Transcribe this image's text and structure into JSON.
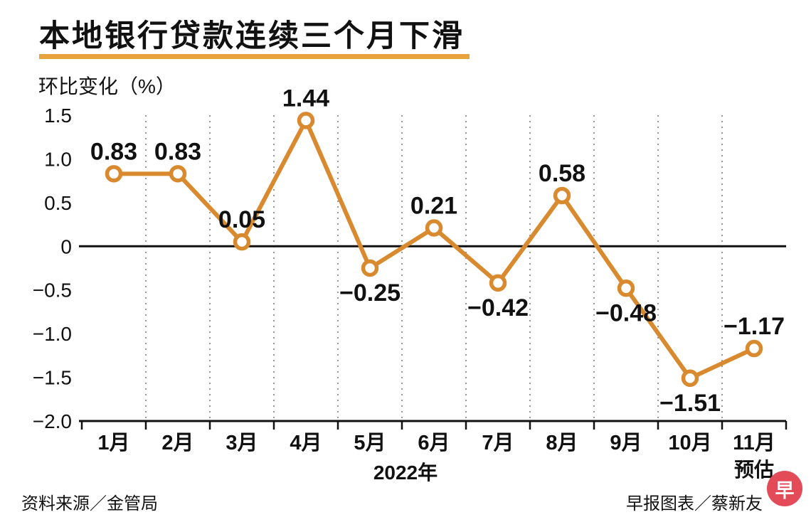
{
  "title": "本地银行贷款连续三个月下滑",
  "footer": {
    "source": "资料来源／金管局",
    "credit": "早报图表／蔡新友",
    "logo_char": "早"
  },
  "colors": {
    "line": "#D98A2E",
    "underline": "#E8A33C",
    "logo_red": "#E24B57",
    "text": "#111111",
    "gridline": "#9A9A9A"
  },
  "chart_data": {
    "type": "line",
    "title": "本地银行贷款连续三个月下滑",
    "ylabel": "环比变化（%）",
    "xlabel": "2022年",
    "categories": [
      "1月",
      "2月",
      "3月",
      "4月",
      "5月",
      "6月",
      "7月",
      "8月",
      "9月",
      "10月",
      "11月"
    ],
    "values": [
      0.83,
      0.83,
      0.05,
      1.44,
      -0.25,
      0.21,
      -0.42,
      0.58,
      -0.48,
      -1.51,
      -1.17
    ],
    "value_labels": [
      "0.83",
      "0.83",
      "0.05",
      "1.44",
      "−0.25",
      "0.21",
      "−0.42",
      "0.58",
      "−0.48",
      "−1.51",
      "−1.17"
    ],
    "label_positions": [
      "above",
      "above",
      "above",
      "above",
      "below",
      "above",
      "below",
      "above",
      "below",
      "below",
      "above"
    ],
    "last_category_note": "预估",
    "yticks": [
      1.5,
      1.0,
      0.5,
      0,
      -0.5,
      -1.0,
      -1.5,
      -2.0
    ],
    "ytick_labels": [
      "1.5",
      "1.0",
      "0.5",
      "0",
      "−0.5",
      "−1.0",
      "−1.5",
      "−2.0"
    ],
    "ylim": [
      -2.0,
      1.5
    ],
    "grid": "vertical-dashed",
    "legend": "none"
  }
}
